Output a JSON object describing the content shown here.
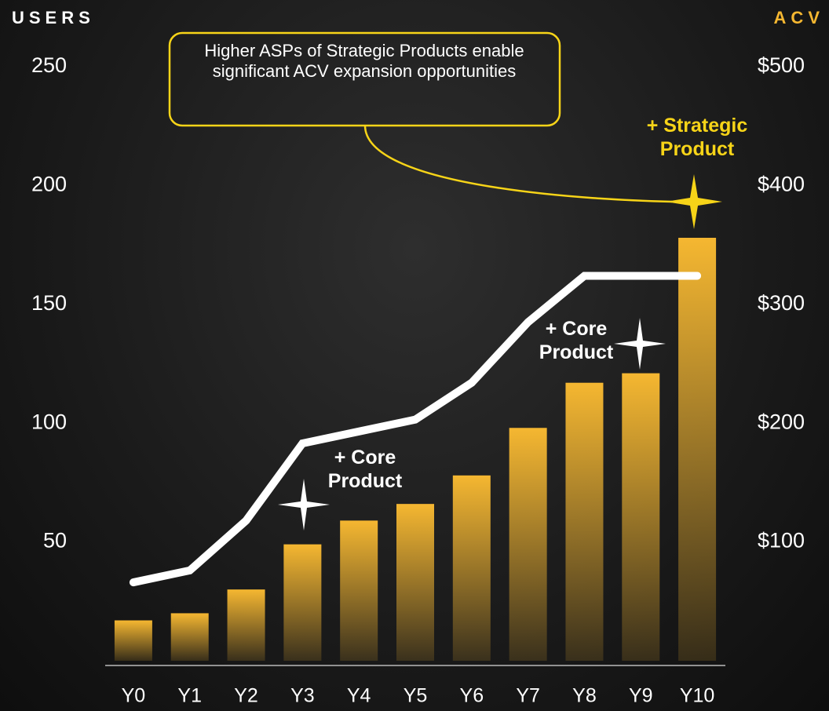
{
  "chart_data": {
    "type": "bar",
    "y_label": "USERS",
    "y2_label": "ACV",
    "categories": [
      "Y0",
      "Y1",
      "Y2",
      "Y3",
      "Y4",
      "Y5",
      "Y6",
      "Y7",
      "Y8",
      "Y9",
      "Y10"
    ],
    "series": [
      {
        "type": "bar",
        "color": "#f5b731",
        "values": [
          17,
          20,
          30,
          49,
          59,
          66,
          78,
          98,
          117,
          121,
          178
        ]
      },
      {
        "type": "line",
        "color": "#ffffff",
        "axis": "y2",
        "values": [
          66,
          76,
          118,
          183,
          193,
          203,
          234,
          285,
          324,
          324,
          324
        ]
      }
    ],
    "ylim": [
      0,
      250
    ],
    "yticks": [
      50,
      100,
      150,
      200,
      250
    ],
    "y2lim": [
      0,
      500
    ],
    "y2ticks": [
      {
        "value": 100,
        "label": "$100"
      },
      {
        "value": 200,
        "label": "$200"
      },
      {
        "value": 300,
        "label": "$300"
      },
      {
        "value": 400,
        "label": "$400"
      },
      {
        "value": 500,
        "label": "$500"
      }
    ],
    "annotations": [
      {
        "text": "Higher ASPs of Strategic Products enable significant ACV expansion opportunities"
      },
      {
        "text": "+ Core Product"
      },
      {
        "text": "+ Core Product"
      },
      {
        "text": "+ Strategic Product"
      }
    ]
  }
}
